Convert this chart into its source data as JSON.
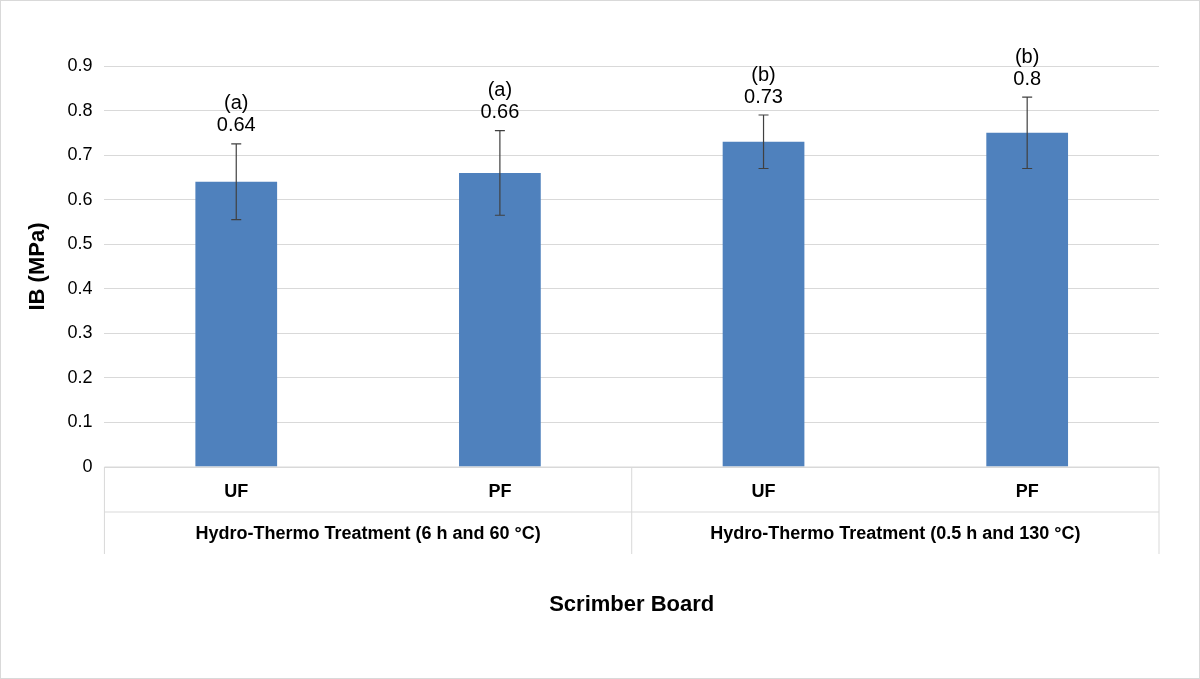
{
  "chart_data": {
    "type": "bar",
    "xlabel": "Scrimber Board",
    "ylabel": "IB (MPa)",
    "categories": [
      "UF",
      "PF",
      "UF",
      "PF"
    ],
    "values": [
      0.64,
      0.66,
      0.73,
      0.75
    ],
    "errors": [
      0.085,
      0.095,
      0.06,
      0.08
    ],
    "value_labels": [
      "0.64",
      "0.66",
      "0.73",
      "0.8"
    ],
    "color": "#4f81bd",
    "ylim": [
      0,
      0.9
    ],
    "yticks": [
      0,
      0.1,
      0.2,
      0.3,
      0.4,
      0.5,
      0.6,
      0.7,
      0.8,
      0.9
    ],
    "grid": "y",
    "annotations": [
      "(a)",
      "(a)",
      "(b)",
      "(b)",
      "Hydro-Thermo Treatment (6 h and 60 °C)",
      "Hydro-Thermo Treatment (0.5 h and 130 °C)"
    ]
  }
}
